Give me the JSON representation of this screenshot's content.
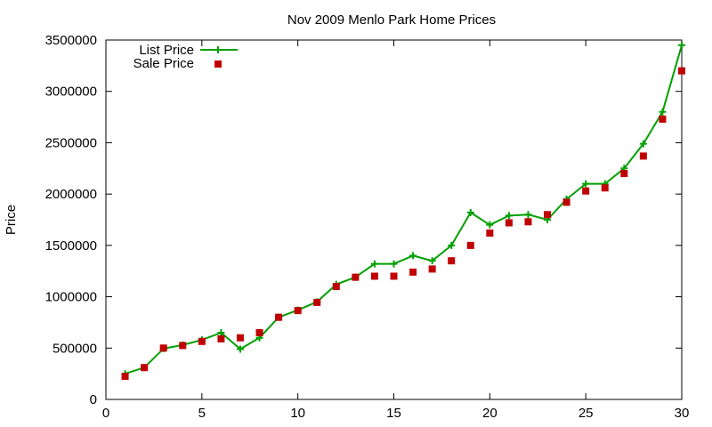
{
  "chart_data": {
    "type": "line",
    "title": "Nov 2009 Menlo Park Home Prices",
    "xlabel": "",
    "ylabel": "Price",
    "xlim": [
      0,
      30
    ],
    "ylim": [
      0,
      3500000
    ],
    "x_ticks": [
      0,
      5,
      10,
      15,
      20,
      25,
      30
    ],
    "y_ticks": [
      0,
      500000,
      1000000,
      1500000,
      2000000,
      2500000,
      3000000,
      3500000
    ],
    "grid": false,
    "legend_position": "top-left",
    "series": [
      {
        "name": "List Price",
        "kind": "line-with-plus-markers",
        "color": "#00a000",
        "x": [
          1,
          2,
          3,
          4,
          5,
          6,
          7,
          8,
          9,
          10,
          11,
          12,
          13,
          14,
          15,
          16,
          17,
          18,
          19,
          20,
          21,
          22,
          23,
          24,
          25,
          26,
          27,
          28,
          29,
          30
        ],
        "y": [
          250000,
          310000,
          495000,
          530000,
          580000,
          650000,
          490000,
          600000,
          800000,
          870000,
          950000,
          1120000,
          1190000,
          1320000,
          1320000,
          1400000,
          1350000,
          1500000,
          1820000,
          1700000,
          1790000,
          1800000,
          1750000,
          1950000,
          2100000,
          2100000,
          2250000,
          2490000,
          2800000,
          3450000
        ]
      },
      {
        "name": "Sale Price",
        "kind": "square-markers",
        "color": "#c00000",
        "x": [
          1,
          2,
          3,
          4,
          5,
          6,
          7,
          8,
          9,
          10,
          11,
          12,
          13,
          14,
          15,
          16,
          17,
          18,
          19,
          20,
          21,
          22,
          23,
          24,
          25,
          26,
          27,
          28,
          29,
          30
        ],
        "y": [
          225000,
          310000,
          500000,
          525000,
          565000,
          590000,
          600000,
          650000,
          800000,
          865000,
          945000,
          1100000,
          1190000,
          1200000,
          1200000,
          1240000,
          1270000,
          1350000,
          1500000,
          1620000,
          1720000,
          1730000,
          1800000,
          1920000,
          2030000,
          2060000,
          2200000,
          2370000,
          2730000,
          3200000
        ]
      }
    ]
  }
}
